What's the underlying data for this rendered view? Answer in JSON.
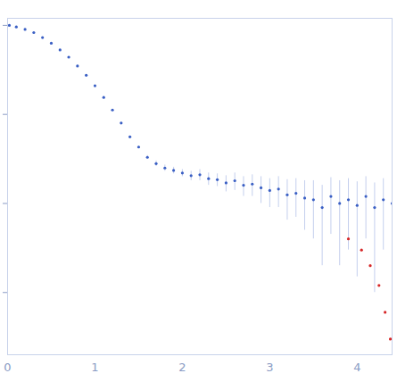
{
  "chart_data": {
    "type": "scatter",
    "log": "y",
    "grid": false,
    "tick_labels": "x",
    "xlim": [
      0,
      4.4
    ],
    "xticks": [
      0,
      1,
      2,
      3,
      4
    ],
    "ylim": [
      0.002,
      12
    ],
    "yticks": [
      0.01,
      0.1,
      1,
      10
    ],
    "series": [
      {
        "color": "#3a5fc4",
        "x": [
          0.02,
          0.1,
          0.2,
          0.3,
          0.4,
          0.5,
          0.6,
          0.7,
          0.8,
          0.9,
          1.0,
          1.1,
          1.2,
          1.3,
          1.4,
          1.5,
          1.6,
          1.7,
          1.8,
          1.9,
          2.0,
          2.1,
          2.2,
          2.3,
          2.4,
          2.5,
          2.6,
          2.7,
          2.8,
          2.9,
          3.0,
          3.1,
          3.2,
          3.3,
          3.4,
          3.5,
          3.6,
          3.7,
          3.8,
          3.9,
          4.0,
          4.1,
          4.2,
          4.3,
          4.4
        ],
        "values": [
          10.0,
          9.6,
          9.0,
          8.3,
          7.3,
          6.3,
          5.3,
          4.4,
          3.5,
          2.75,
          2.1,
          1.55,
          1.12,
          0.8,
          0.56,
          0.43,
          0.33,
          0.28,
          0.25,
          0.235,
          0.22,
          0.205,
          0.21,
          0.19,
          0.185,
          0.17,
          0.18,
          0.16,
          0.165,
          0.15,
          0.14,
          0.145,
          0.125,
          0.13,
          0.115,
          0.11,
          0.09,
          0.12,
          0.1,
          0.11,
          0.095,
          0.12,
          0.09,
          0.11,
          0.1
        ],
        "error": [
          0.1,
          0.09,
          0.08,
          0.07,
          0.06,
          0.05,
          0.04,
          0.035,
          0.03,
          0.025,
          0.02,
          0.015,
          0.012,
          0.01,
          0.01,
          0.01,
          0.015,
          0.02,
          0.02,
          0.02,
          0.02,
          0.025,
          0.03,
          0.03,
          0.03,
          0.035,
          0.04,
          0.04,
          0.045,
          0.05,
          0.05,
          0.055,
          0.06,
          0.06,
          0.065,
          0.07,
          0.07,
          0.075,
          0.08,
          0.08,
          0.08,
          0.08,
          0.08,
          0.08,
          0.08
        ]
      },
      {
        "color": "#d62728",
        "x": [
          3.9,
          4.05,
          4.15,
          4.25,
          4.32,
          4.38
        ],
        "values": [
          0.04,
          0.03,
          0.02,
          0.012,
          0.006,
          0.003
        ]
      }
    ]
  }
}
